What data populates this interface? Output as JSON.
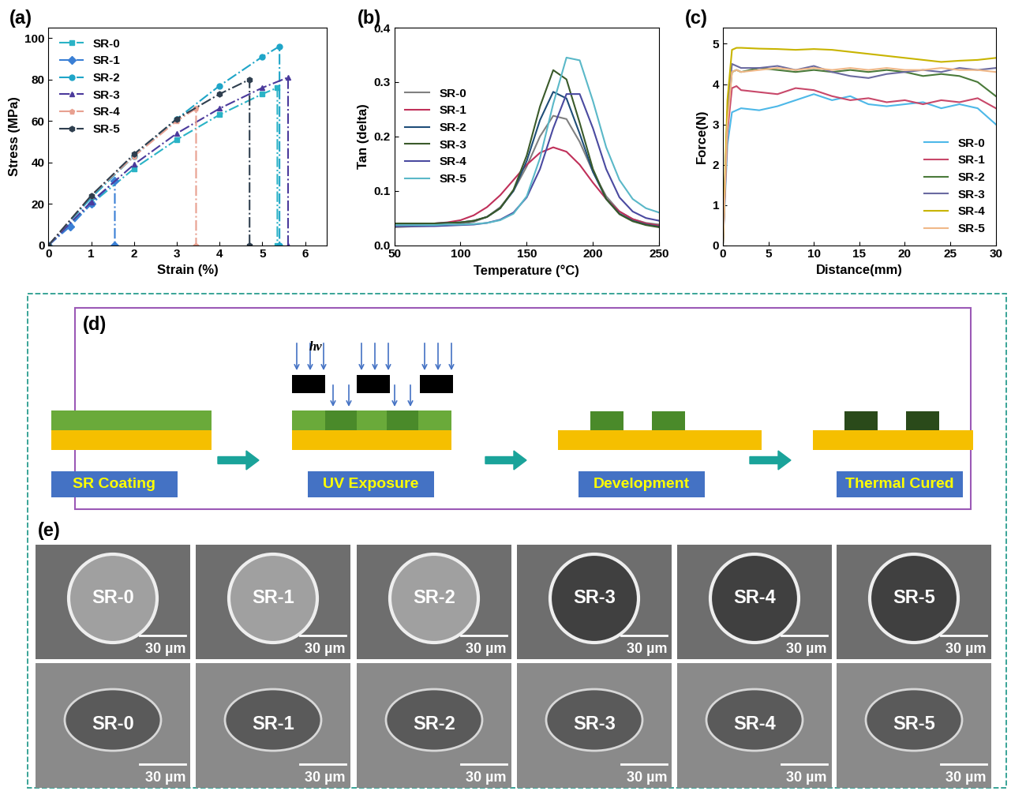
{
  "chart_data": [
    {
      "type": "line",
      "title": "(a)",
      "x_label": "Strain (%)",
      "y_label": "Stress (MPa)",
      "xlim": [
        0,
        6.5
      ],
      "xticks": [
        0,
        1,
        2,
        3,
        4,
        5,
        6
      ],
      "ylim": [
        0,
        105
      ],
      "yticks": [
        0,
        20,
        40,
        60,
        80,
        100
      ],
      "legend": "upper left",
      "line_style": "dashdot",
      "series": [
        {
          "name": "SR-0",
          "color": "#2ab3c6",
          "marker": "square",
          "x": [
            0,
            1,
            2,
            3,
            4,
            5,
            5.35,
            5.35
          ],
          "values": [
            0,
            20,
            37,
            51,
            63,
            73,
            76,
            0
          ]
        },
        {
          "name": "SR-1",
          "color": "#3a7fd5",
          "marker": "diamond",
          "x": [
            0,
            0.5,
            1,
            1.55,
            1.55
          ],
          "values": [
            0,
            9,
            20,
            31,
            0
          ]
        },
        {
          "name": "SR-2",
          "color": "#1fa5c8",
          "marker": "circle",
          "x": [
            0,
            1,
            2,
            3,
            4,
            5,
            5.4,
            5.4
          ],
          "values": [
            0,
            23,
            43,
            61,
            77,
            91,
            96,
            0
          ]
        },
        {
          "name": "SR-3",
          "color": "#4b3a9c",
          "marker": "triangle",
          "x": [
            0,
            1,
            2,
            3,
            4,
            5,
            5.6,
            5.6
          ],
          "values": [
            0,
            21,
            39,
            54,
            66,
            76,
            81,
            0
          ]
        },
        {
          "name": "SR-4",
          "color": "#e8a090",
          "marker": "pentagon",
          "x": [
            0,
            1,
            2,
            3,
            3.45,
            3.45
          ],
          "values": [
            0,
            24,
            43,
            60,
            66,
            0
          ]
        },
        {
          "name": "SR-5",
          "color": "#2f3f4f",
          "marker": "hexagon",
          "x": [
            0,
            1,
            2,
            3,
            4,
            4.7,
            4.7
          ],
          "values": [
            0,
            24,
            44,
            61,
            73,
            80,
            0
          ]
        }
      ]
    },
    {
      "type": "line",
      "title": "(b)",
      "x_label": "Temperature (°C)",
      "y_label": "Tan (delta)",
      "xlim": [
        50,
        250
      ],
      "xticks": [
        50,
        100,
        150,
        200,
        250
      ],
      "ylim": [
        0.0,
        0.4
      ],
      "yticks": [
        0.0,
        0.1,
        0.2,
        0.3,
        0.4
      ],
      "legend": "center left",
      "line_style": "solid",
      "x": [
        50,
        60,
        70,
        80,
        90,
        100,
        110,
        120,
        130,
        140,
        150,
        160,
        170,
        180,
        190,
        200,
        210,
        220,
        230,
        240,
        250
      ],
      "series": [
        {
          "name": "SR-0",
          "color": "#808080",
          "values": [
            0.033,
            0.034,
            0.035,
            0.036,
            0.037,
            0.039,
            0.043,
            0.052,
            0.07,
            0.1,
            0.145,
            0.2,
            0.238,
            0.232,
            0.19,
            0.135,
            0.09,
            0.062,
            0.048,
            0.041,
            0.038
          ]
        },
        {
          "name": "SR-1",
          "color": "#c0305a",
          "values": [
            0.038,
            0.038,
            0.039,
            0.04,
            0.042,
            0.046,
            0.055,
            0.07,
            0.092,
            0.12,
            0.148,
            0.17,
            0.18,
            0.172,
            0.148,
            0.115,
            0.085,
            0.062,
            0.048,
            0.04,
            0.036
          ]
        },
        {
          "name": "SR-2",
          "color": "#1f4e79",
          "values": [
            0.04,
            0.04,
            0.04,
            0.04,
            0.041,
            0.042,
            0.045,
            0.052,
            0.068,
            0.1,
            0.155,
            0.23,
            0.282,
            0.27,
            0.205,
            0.135,
            0.085,
            0.058,
            0.045,
            0.038,
            0.034
          ]
        },
        {
          "name": "SR-3",
          "color": "#3a5a2a",
          "values": [
            0.04,
            0.04,
            0.04,
            0.04,
            0.041,
            0.042,
            0.045,
            0.052,
            0.068,
            0.102,
            0.165,
            0.255,
            0.322,
            0.305,
            0.225,
            0.14,
            0.085,
            0.057,
            0.044,
            0.037,
            0.033
          ]
        },
        {
          "name": "SR-4",
          "color": "#4a4aa0",
          "values": [
            0.035,
            0.035,
            0.035,
            0.035,
            0.036,
            0.037,
            0.038,
            0.041,
            0.047,
            0.06,
            0.088,
            0.14,
            0.215,
            0.278,
            0.278,
            0.215,
            0.14,
            0.088,
            0.062,
            0.05,
            0.045
          ]
        },
        {
          "name": "SR-5",
          "color": "#5ab8c8",
          "values": [
            0.037,
            0.037,
            0.037,
            0.037,
            0.038,
            0.038,
            0.039,
            0.041,
            0.046,
            0.058,
            0.09,
            0.16,
            0.26,
            0.345,
            0.34,
            0.265,
            0.18,
            0.12,
            0.085,
            0.068,
            0.06
          ]
        }
      ]
    },
    {
      "type": "line",
      "title": "(c)",
      "x_label": "Distance(mm)",
      "y_label": "Force(N)",
      "xlim": [
        0,
        30
      ],
      "xticks": [
        0,
        5,
        10,
        15,
        20,
        25,
        30
      ],
      "ylim": [
        0,
        5.4
      ],
      "yticks": [
        0,
        1,
        2,
        3,
        4,
        5
      ],
      "legend": "lower right",
      "line_style": "solid",
      "x": [
        0,
        0.5,
        1,
        1.5,
        2,
        4,
        6,
        8,
        10,
        12,
        14,
        16,
        18,
        20,
        22,
        24,
        26,
        28,
        30
      ],
      "series": [
        {
          "name": "SR-0",
          "color": "#4db8e8",
          "values": [
            0,
            2.5,
            3.3,
            3.35,
            3.4,
            3.35,
            3.45,
            3.6,
            3.75,
            3.6,
            3.7,
            3.5,
            3.45,
            3.5,
            3.55,
            3.4,
            3.5,
            3.4,
            3.0
          ]
        },
        {
          "name": "SR-1",
          "color": "#c8486a",
          "values": [
            0,
            2.8,
            3.9,
            3.95,
            3.85,
            3.8,
            3.75,
            3.9,
            3.85,
            3.7,
            3.6,
            3.65,
            3.55,
            3.6,
            3.5,
            3.6,
            3.55,
            3.65,
            3.4
          ]
        },
        {
          "name": "SR-2",
          "color": "#4a7a3a",
          "values": [
            0,
            3.2,
            4.3,
            4.35,
            4.3,
            4.4,
            4.35,
            4.3,
            4.35,
            4.3,
            4.35,
            4.3,
            4.35,
            4.3,
            4.2,
            4.25,
            4.2,
            4.05,
            3.7
          ]
        },
        {
          "name": "SR-3",
          "color": "#6a6aa0",
          "values": [
            0,
            3.3,
            4.5,
            4.45,
            4.4,
            4.4,
            4.45,
            4.35,
            4.45,
            4.3,
            4.2,
            4.15,
            4.25,
            4.3,
            4.35,
            4.3,
            4.4,
            4.35,
            4.4
          ]
        },
        {
          "name": "SR-4",
          "color": "#c8b400",
          "values": [
            0,
            3.6,
            4.85,
            4.9,
            4.9,
            4.88,
            4.87,
            4.85,
            4.87,
            4.85,
            4.8,
            4.75,
            4.7,
            4.65,
            4.6,
            4.55,
            4.58,
            4.6,
            4.65
          ]
        },
        {
          "name": "SR-5",
          "color": "#f0b888",
          "values": [
            0,
            3.0,
            4.3,
            4.35,
            4.3,
            4.35,
            4.4,
            4.35,
            4.4,
            4.35,
            4.4,
            4.35,
            4.4,
            4.35,
            4.35,
            4.4,
            4.35,
            4.35,
            4.3
          ]
        }
      ]
    }
  ],
  "diagram": {
    "label": "(d)",
    "light": "hv",
    "steps": [
      "SR Coating",
      "UV Exposure",
      "Development",
      "Thermal Cured"
    ]
  },
  "micrographs": {
    "label": "(e)",
    "samples": [
      "SR-0",
      "SR-1",
      "SR-2",
      "SR-3",
      "SR-4",
      "SR-5"
    ],
    "scale_bar": "30 µm"
  }
}
